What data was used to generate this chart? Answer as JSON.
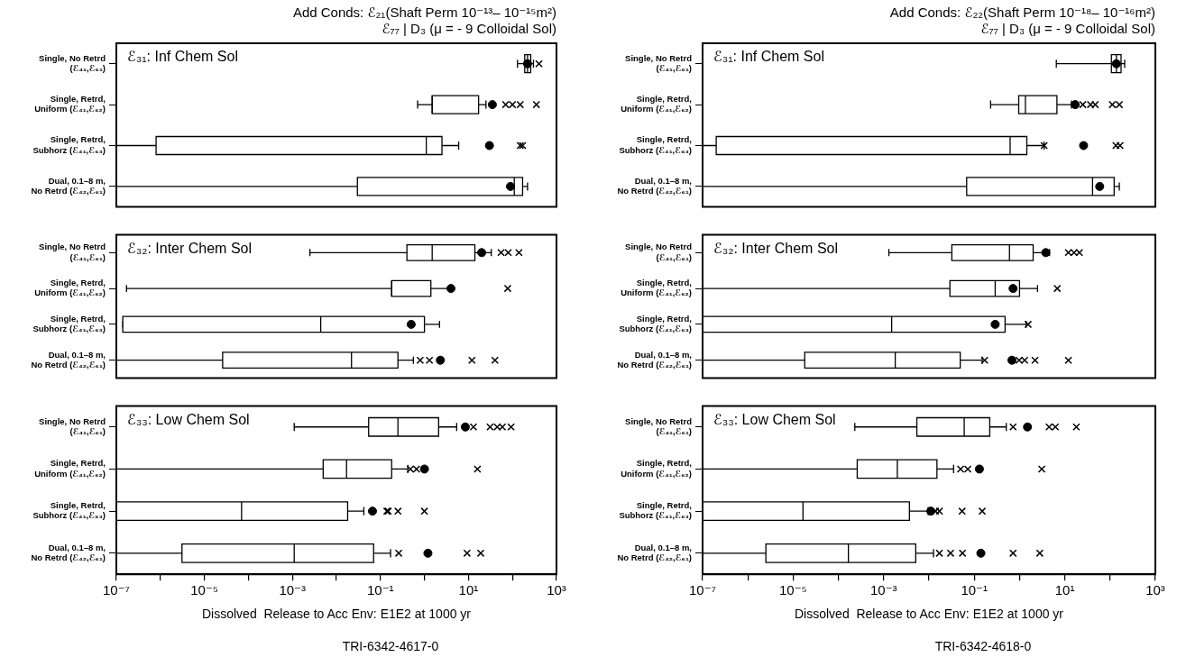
{
  "chart_data": [
    {
      "type": "box",
      "orientation": "horizontal",
      "log": "x",
      "title": "Add Conds: ℰ₂₁(Shaft Perm 10⁻¹³– 10⁻¹⁵m²)",
      "subtitle": "ℰ₇₇ | D₃ (μ = - 9 Colloidal Sol)",
      "tick_labels": "y",
      "annotations": [
        "ℰ₃₁: Inf Chem Sol"
      ],
      "categories": [
        "Single, No Retrd\n(ℰ₄₁,ℰ₆₁)",
        "Single, Retrd,\nUniform (ℰ₄₁,ℰ₆₂)",
        "Single, Retrd,\nSubhorz (ℰ₄₁,ℰ₆₃)",
        "Dual, 0.1–8 m,\nNo Retrd (ℰ₄₂,ℰ₆₁)"
      ],
      "xlim": [
        1e-07,
        1000
      ],
      "boxes": [
        {
          "low": 130,
          "q1": 190,
          "median": 220,
          "q3": 260,
          "high": 300,
          "mean": 220,
          "outliers": [
            400
          ]
        },
        {
          "low": 0.7,
          "q1": 1.5,
          "median": 1.5,
          "q3": 17,
          "high": 25,
          "mean": 35,
          "outliers": [
            70,
            100,
            150,
            350
          ]
        },
        {
          "low": 1e-07,
          "q1": 8e-07,
          "median": 1.1,
          "q3": 2.5,
          "high": 6,
          "mean": 30,
          "outliers": [
            150,
            170
          ]
        },
        {
          "low": 1e-07,
          "q1": 0.03,
          "median": 110,
          "q3": 170,
          "high": 220,
          "mean": 90
        }
      ]
    },
    {
      "type": "box",
      "orientation": "horizontal",
      "log": "x",
      "tick_labels": "y",
      "annotations": [
        "ℰ₃₂: Inter Chem Sol"
      ],
      "categories": [
        "Single, No Retrd\n(ℰ₄₁,ℰ₆₁)",
        "Single, Retrd,\nUniform (ℰ₄₁,ℰ₆₂)",
        "Single, Retrd,\nSubhorz (ℰ₄₁,ℰ₆₃)",
        "Dual, 0.1–8 m,\nNo Retrd (ℰ₄₂,ℰ₆₁)"
      ],
      "xlim": [
        1e-07,
        1000
      ],
      "boxes": [
        {
          "low": 0.0025,
          "q1": 0.4,
          "median": 1.5,
          "q3": 14,
          "high": 33,
          "mean": 20,
          "outliers": [
            55,
            80,
            140
          ]
        },
        {
          "low": 1.7e-07,
          "q1": 0.18,
          "median": 0.18,
          "q3": 1.4,
          "high": 4,
          "mean": 4,
          "outliers": [
            78
          ]
        },
        {
          "low": 1.4e-07,
          "q1": 1.4e-07,
          "median": 0.0044,
          "q3": 1,
          "high": 2.2,
          "mean": 0.5
        },
        {
          "low": 1e-07,
          "q1": 2.6e-05,
          "median": 0.022,
          "q3": 0.25,
          "high": 0.56,
          "mean": 2.3,
          "outliers": [
            0.8,
            1.3,
            12,
            40
          ]
        }
      ]
    },
    {
      "type": "box",
      "orientation": "horizontal",
      "log": "x",
      "xlabel": "Dissolved  Release to Acc Env: E1E2 at 1000 yr",
      "annotations": [
        "ℰ₃₃: Low Chem Sol",
        "TRI-6342-4617-0"
      ],
      "categories": [
        "Single, No Retrd\n(ℰ₄₁,ℰ₆₁)",
        "Single, Retrd,\nUniform (ℰ₄₁,ℰ₆₂)",
        "Single, Retrd,\nSubhorz (ℰ₄₁,ℰ₆₃)",
        "Dual, 0.1–8 m,\nNo Retrd (ℰ₄₂,ℰ₆₁)"
      ],
      "xlim": [
        1e-07,
        1000
      ],
      "xticks": [
        {
          "value": 1e-07,
          "label": "10⁻⁷"
        },
        {
          "value": 1e-06,
          "label": null
        },
        {
          "value": 1e-05,
          "label": "10⁻⁵"
        },
        {
          "value": 0.0001,
          "label": null
        },
        {
          "value": 0.001,
          "label": "10⁻³"
        },
        {
          "value": 0.01,
          "label": null
        },
        {
          "value": 0.1,
          "label": "10⁻¹"
        },
        {
          "value": 1,
          "label": null
        },
        {
          "value": 10,
          "label": "10¹"
        },
        {
          "value": 100,
          "label": null
        },
        {
          "value": 1000,
          "label": "10³"
        }
      ],
      "boxes": [
        {
          "low": 0.0011,
          "q1": 0.054,
          "median": 0.25,
          "q3": 2.1,
          "high": 5.4,
          "mean": 8.5,
          "outliers": [
            13,
            31,
            45,
            59,
            93
          ]
        },
        {
          "low": 1e-07,
          "q1": 0.005,
          "median": 0.017,
          "q3": 0.18,
          "high": 0.42,
          "mean": 1,
          "outliers": [
            0.48,
            0.66,
            16
          ]
        },
        {
          "low": 1e-07,
          "q1": 1e-07,
          "median": 7e-05,
          "q3": 0.018,
          "high": 0.042,
          "mean": 0.066,
          "outliers": [
            0.14,
            0.15,
            0.25,
            1
          ]
        },
        {
          "low": 1e-07,
          "q1": 3.1e-06,
          "median": 0.0011,
          "q3": 0.07,
          "high": 0.17,
          "mean": 1.2,
          "outliers": [
            0.26,
            9.3,
            19
          ]
        }
      ]
    },
    {
      "type": "box",
      "orientation": "horizontal",
      "log": "x",
      "title": "Add Conds: ℰ₂₂(Shaft Perm 10⁻¹⁸– 10⁻¹⁶m²)",
      "subtitle": "ℰ₇₇ | D₃ (μ = - 9 Colloidal Sol)",
      "tick_labels": "y",
      "annotations": [
        "ℰ₃₁: Inf Chem Sol"
      ],
      "categories": [
        "Single, No Retrd\n(ℰ₄₁,ℰ₆₁)",
        "Single, Retrd,\nUniform (ℰ₄₁,ℰ₆₂)",
        "Single, Retrd,\nSubhorz (ℰ₄₁,ℰ₆₃)",
        "Dual, 0.1–8 m,\nNo Retrd (ℰ₄₂,ℰ₆₁)"
      ],
      "xlim": [
        1e-07,
        1000
      ],
      "boxes": [
        {
          "low": 6.5,
          "q1": 107,
          "median": 138,
          "q3": 175,
          "high": 210,
          "mean": 138
        },
        {
          "low": 0.23,
          "q1": 0.96,
          "median": 1.35,
          "q3": 6.7,
          "high": 14,
          "mean": 17,
          "outliers": [
            25,
            37,
            47,
            112,
            160
          ]
        },
        {
          "low": 1e-07,
          "q1": 2e-07,
          "median": 0.62,
          "q3": 1.45,
          "high": 3.5,
          "mean": 26,
          "outliers": [
            3.5,
            135,
            166
          ]
        },
        {
          "low": 1e-07,
          "q1": 0.068,
          "median": 41,
          "q3": 123,
          "high": 160,
          "mean": 59
        }
      ]
    },
    {
      "type": "box",
      "orientation": "horizontal",
      "log": "x",
      "tick_labels": "y",
      "annotations": [
        "ℰ₃₂: Inter Chem Sol"
      ],
      "categories": [
        "Single, No Retrd\n(ℰ₄₁,ℰ₆₁)",
        "Single, Retrd,\nUniform (ℰ₄₁,ℰ₆₂)",
        "Single, Retrd,\nSubhorz (ℰ₄₁,ℰ₆₃)",
        "Dual, 0.1–8 m,\nNo Retrd (ℰ₄₂,ℰ₆₁)"
      ],
      "xlim": [
        1e-07,
        1000
      ],
      "boxes": [
        {
          "low": 0.0013,
          "q1": 0.032,
          "median": 0.6,
          "q3": 2,
          "high": 4.6,
          "mean": 3.8,
          "outliers": [
            12,
            16,
            21
          ]
        },
        {
          "low": 1e-07,
          "q1": 0.029,
          "median": 0.29,
          "q3": 1,
          "high": 2.5,
          "mean": 0.72,
          "outliers": [
            6.8
          ]
        },
        {
          "low": 1e-07,
          "q1": 1e-07,
          "median": 0.0015,
          "q3": 0.48,
          "high": 1.4,
          "mean": 0.29,
          "outliers": [
            1.55
          ]
        },
        {
          "low": 1e-07,
          "q1": 1.8e-05,
          "median": 0.0018,
          "q3": 0.049,
          "high": 0.15,
          "mean": 0.68,
          "outliers": [
            0.17,
            0.98,
            1.3,
            2.2,
            12
          ]
        }
      ]
    },
    {
      "type": "box",
      "orientation": "horizontal",
      "log": "x",
      "xlabel": "Dissolved  Release to Acc Env: E1E2 at 1000 yr",
      "annotations": [
        "ℰ₃₃: Low Chem Sol",
        "TRI-6342-4618-0"
      ],
      "categories": [
        "Single, No Retrd\n(ℰ₄₁,ℰ₆₁)",
        "Single, Retrd,\nUniform (ℰ₄₁,ℰ₆₂)",
        "Single, Retrd,\nSubhorz (ℰ₄₁,ℰ₆₃)",
        "Dual, 0.1–8 m,\nNo Retrd (ℰ₄₂,ℰ₆₁)"
      ],
      "xlim": [
        1e-07,
        1000
      ],
      "xticks": [
        {
          "value": 1e-07,
          "label": "10⁻⁷"
        },
        {
          "value": 1e-06,
          "label": null
        },
        {
          "value": 1e-05,
          "label": "10⁻⁵"
        },
        {
          "value": 0.0001,
          "label": null
        },
        {
          "value": 0.001,
          "label": "10⁻³"
        },
        {
          "value": 0.01,
          "label": null
        },
        {
          "value": 0.1,
          "label": "10⁻¹"
        },
        {
          "value": 1,
          "label": null
        },
        {
          "value": 10,
          "label": "10¹"
        },
        {
          "value": 100,
          "label": null
        },
        {
          "value": 1000,
          "label": "10³"
        }
      ],
      "boxes": [
        {
          "low": 0.00023,
          "q1": 0.0054,
          "median": 0.06,
          "q3": 0.22,
          "high": 0.51,
          "mean": 1.5,
          "outliers": [
            0.72,
            4.5,
            6.2,
            18
          ]
        },
        {
          "low": 1e-07,
          "q1": 0.00026,
          "median": 0.002,
          "q3": 0.015,
          "high": 0.035,
          "mean": 0.13,
          "outliers": [
            0.05,
            0.072,
            3.1
          ]
        },
        {
          "low": 1e-07,
          "q1": 1e-07,
          "median": 1.65e-05,
          "q3": 0.0037,
          "high": 0.0096,
          "mean": 0.011,
          "outliers": [
            0.014,
            0.017,
            0.054,
            0.15
          ]
        },
        {
          "low": 1e-07,
          "q1": 2.5e-06,
          "median": 0.000166,
          "q3": 0.0051,
          "high": 0.0126,
          "mean": 0.14,
          "outliers": [
            0.017,
            0.03,
            0.055,
            0.72,
            2.8
          ]
        }
      ]
    }
  ]
}
